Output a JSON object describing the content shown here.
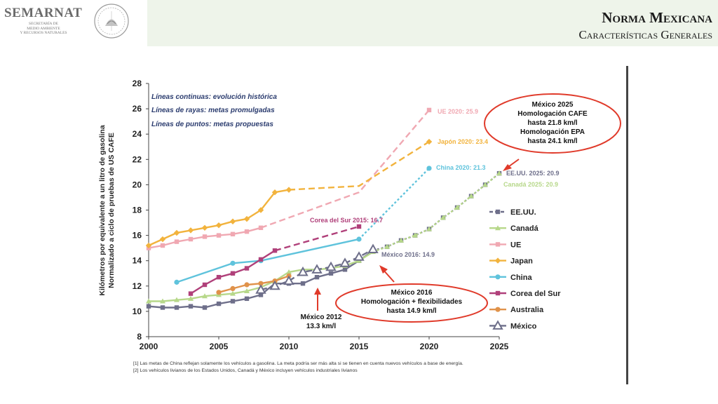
{
  "header": {
    "logo_text": "SEMARNAT",
    "logo_sub": [
      "SECRETARÍA DE",
      "MEDIO AMBIENTE",
      "Y RECURSOS NATURALES"
    ],
    "title": "Norma Mexicana",
    "subtitle": "Características Generales"
  },
  "chart_data": {
    "type": "line",
    "ylabel": [
      "Kilómetros por equivalente a un litro de gasolina",
      "Normalizado a ciclo de pruebas de US CAFE"
    ],
    "xlim": [
      2000,
      2025
    ],
    "ylim": [
      8,
      28
    ],
    "x_ticks": [
      "2000",
      "2005",
      "2010",
      "2015",
      "2020",
      "2025"
    ],
    "y_ticks": [
      "8",
      "10",
      "12",
      "14",
      "16",
      "18",
      "20",
      "22",
      "24",
      "26",
      "28"
    ],
    "line_style_notes": [
      "Líneas continuas: evolución histórica",
      "Líneas de rayas: metas promulgadas",
      "Líneas de puntos: metas propuestas"
    ],
    "series": [
      {
        "name": "EE.UU.",
        "color": "#6e6f8a",
        "marker": "square",
        "hist": [
          [
            2000,
            10.4
          ],
          [
            2001,
            10.3
          ],
          [
            2002,
            10.3
          ],
          [
            2003,
            10.4
          ],
          [
            2004,
            10.3
          ],
          [
            2005,
            10.6
          ],
          [
            2006,
            10.8
          ],
          [
            2007,
            11.0
          ],
          [
            2008,
            11.3
          ],
          [
            2009,
            12.2
          ],
          [
            2010,
            12.2
          ],
          [
            2011,
            12.2
          ],
          [
            2012,
            12.7
          ],
          [
            2013,
            13.0
          ],
          [
            2014,
            13.3
          ],
          [
            2015,
            14.0
          ],
          [
            2016,
            14.8
          ]
        ],
        "proposed": [
          [
            2016,
            14.8
          ],
          [
            2017,
            15.1
          ],
          [
            2018,
            15.6
          ],
          [
            2019,
            16.0
          ],
          [
            2020,
            16.5
          ],
          [
            2021,
            17.4
          ],
          [
            2022,
            18.2
          ],
          [
            2023,
            19.1
          ],
          [
            2024,
            20.0
          ],
          [
            2025,
            20.9
          ]
        ]
      },
      {
        "name": "Canadá",
        "color": "#b7d88a",
        "marker": "triangle",
        "hist": [
          [
            2000,
            10.8
          ],
          [
            2001,
            10.8
          ],
          [
            2002,
            10.9
          ],
          [
            2003,
            11.0
          ],
          [
            2004,
            11.2
          ],
          [
            2005,
            11.3
          ],
          [
            2006,
            11.4
          ],
          [
            2007,
            11.6
          ],
          [
            2008,
            11.9
          ],
          [
            2009,
            12.4
          ],
          [
            2010,
            13.1
          ],
          [
            2011,
            13.3
          ],
          [
            2012,
            13.3
          ],
          [
            2013,
            13.4
          ],
          [
            2014,
            13.6
          ],
          [
            2015,
            14.0
          ],
          [
            2016,
            14.7
          ]
        ],
        "proposed": [
          [
            2016,
            14.7
          ],
          [
            2017,
            15.1
          ],
          [
            2018,
            15.6
          ],
          [
            2019,
            16.0
          ],
          [
            2020,
            16.5
          ],
          [
            2021,
            17.4
          ],
          [
            2022,
            18.2
          ],
          [
            2023,
            19.1
          ],
          [
            2024,
            20.0
          ],
          [
            2025,
            20.9
          ]
        ]
      },
      {
        "name": "UE",
        "color": "#f0a8b2",
        "marker": "square",
        "hist": [
          [
            2000,
            15.0
          ],
          [
            2001,
            15.2
          ],
          [
            2002,
            15.5
          ],
          [
            2003,
            15.7
          ],
          [
            2004,
            15.9
          ],
          [
            2005,
            16.0
          ],
          [
            2006,
            16.1
          ],
          [
            2007,
            16.3
          ],
          [
            2008,
            16.6
          ]
        ],
        "enacted": [
          [
            2008,
            16.6
          ],
          [
            2015,
            19.4
          ],
          [
            2020,
            25.9
          ]
        ]
      },
      {
        "name": "Japan",
        "color": "#f2b33d",
        "marker": "diamond",
        "hist": [
          [
            2000,
            15.2
          ],
          [
            2001,
            15.7
          ],
          [
            2002,
            16.2
          ],
          [
            2003,
            16.4
          ],
          [
            2004,
            16.6
          ],
          [
            2005,
            16.8
          ],
          [
            2006,
            17.1
          ],
          [
            2007,
            17.3
          ],
          [
            2008,
            18.0
          ],
          [
            2009,
            19.4
          ],
          [
            2010,
            19.6
          ]
        ],
        "enacted": [
          [
            2010,
            19.6
          ],
          [
            2015,
            19.9
          ],
          [
            2020,
            23.4
          ]
        ]
      },
      {
        "name": "China",
        "color": "#5fc3dc",
        "marker": "circle",
        "hist": [
          [
            2002,
            12.3
          ],
          [
            2006,
            13.8
          ],
          [
            2008,
            14.0
          ],
          [
            2015,
            15.7
          ]
        ],
        "proposed": [
          [
            2015,
            15.7
          ],
          [
            2020,
            21.3
          ]
        ]
      },
      {
        "name": "Corea del Sur",
        "color": "#b0407a",
        "marker": "square",
        "hist": [
          [
            2003,
            11.4
          ],
          [
            2004,
            12.1
          ],
          [
            2005,
            12.7
          ],
          [
            2006,
            13.0
          ],
          [
            2007,
            13.4
          ],
          [
            2008,
            14.1
          ],
          [
            2009,
            14.8
          ]
        ],
        "enacted": [
          [
            2009,
            14.8
          ],
          [
            2015,
            16.7
          ]
        ]
      },
      {
        "name": "Australia",
        "color": "#e0924a",
        "marker": "circle",
        "hist": [
          [
            2005,
            11.5
          ],
          [
            2006,
            11.8
          ],
          [
            2007,
            12.1
          ],
          [
            2008,
            12.2
          ],
          [
            2009,
            12.4
          ],
          [
            2010,
            12.8
          ]
        ]
      },
      {
        "name": "México",
        "color": "#6e6f8a",
        "marker": "hollow-triangle",
        "enacted": [
          [
            2008,
            11.7
          ],
          [
            2009,
            12.0
          ],
          [
            2010,
            12.4
          ],
          [
            2011,
            13.1
          ],
          [
            2012,
            13.3
          ],
          [
            2013,
            13.5
          ],
          [
            2014,
            13.8
          ],
          [
            2015,
            14.3
          ],
          [
            2016,
            14.9
          ]
        ]
      }
    ],
    "end_labels": [
      {
        "text": "UE 2020: 25.9",
        "color": "#f0a8b2"
      },
      {
        "text": "Japón 2020: 23.4",
        "color": "#f2b33d"
      },
      {
        "text": "China 2020: 21.3",
        "color": "#5fc3dc"
      },
      {
        "text": "EE.UU. 2025: 20.9",
        "color": "#6e6f8a"
      },
      {
        "text": "Canadá 2025: 20.9",
        "color": "#b7d88a"
      },
      {
        "text": "Corea del Sur 2015: 16.7",
        "color": "#b0407a"
      },
      {
        "text": "México 2016: 14.9",
        "color": "#6e6f8a"
      }
    ],
    "callouts": [
      {
        "lines": [
          "México 2025",
          "Homologación CAFE",
          "hasta 21.8 km/l",
          "Homologación EPA",
          "hasta 24.1 km/l"
        ]
      },
      {
        "lines": [
          "México 2016",
          "Homologación + flexibilidades",
          "hasta 14.9 km/l"
        ]
      },
      {
        "lines": [
          "México 2012",
          "13.3 km/l"
        ]
      }
    ],
    "footnotes": [
      "[1] Las metas de China reflejan solamente los vehículos a gasolina. La meta podría ser más alta si se tienen en cuenta nuevos vehículos a base de energía.",
      "[2] Los vehículos livianos de los Estados Unidos, Canadá y México incluyen vehículos industriales livianos"
    ]
  }
}
